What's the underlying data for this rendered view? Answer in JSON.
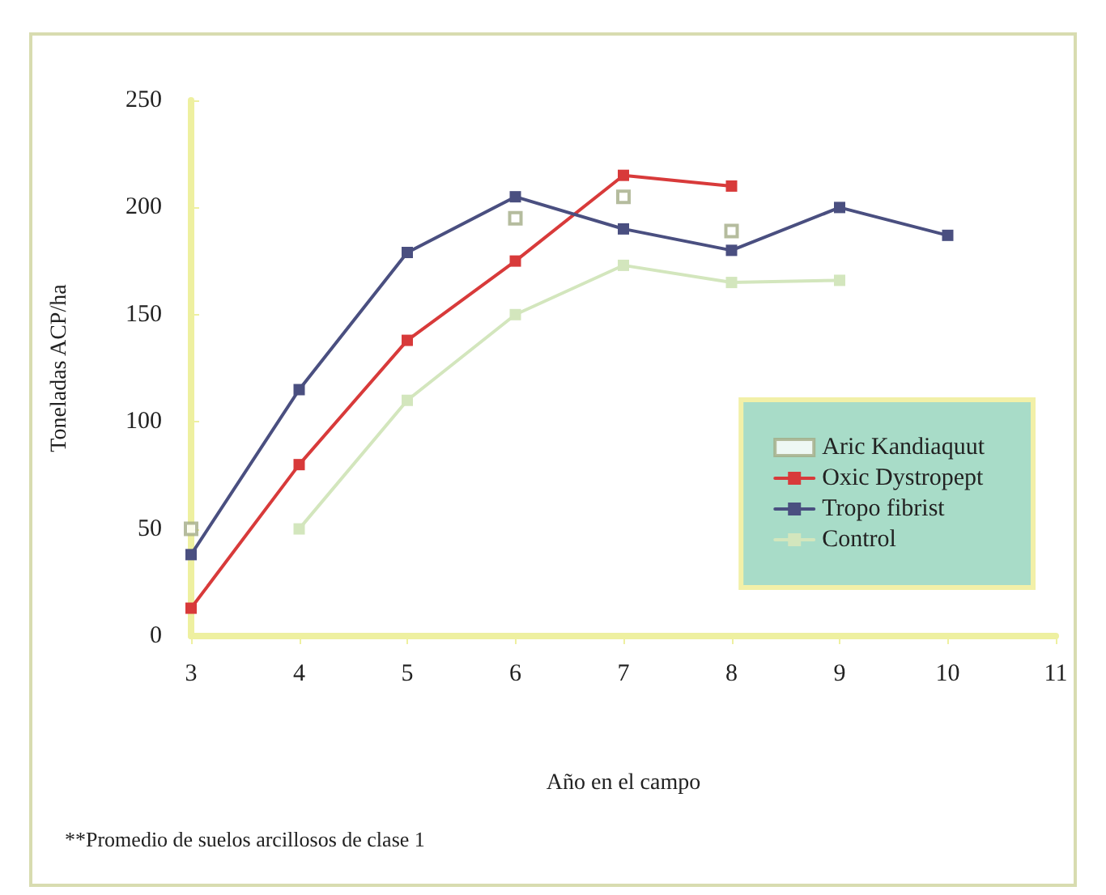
{
  "chart_data": {
    "type": "line",
    "xlabel": "Año en el campo",
    "ylabel": "Toneladas ACP/ha",
    "annotations": [
      "**Promedio de suelos arcillosos de clase 1"
    ],
    "x": [
      3,
      4,
      5,
      6,
      7,
      8,
      9,
      10
    ],
    "series": [
      {
        "name": "Aric Kandiaquut",
        "type": "scatter",
        "color": "#a3ab86",
        "values": [
          50,
          null,
          null,
          195,
          205,
          189,
          null,
          null
        ]
      },
      {
        "name": "Oxic Dystropept",
        "color": "#d83a3a",
        "values": [
          13,
          80,
          138,
          175,
          215,
          210,
          null,
          null
        ]
      },
      {
        "name": "Tropo fibrist",
        "color": "#4a4f80",
        "values": [
          38,
          115,
          179,
          205,
          190,
          180,
          200,
          187
        ]
      },
      {
        "name": "Control",
        "color": "#d3e6bd",
        "values": [
          null,
          50,
          110,
          150,
          173,
          165,
          166,
          null
        ]
      }
    ],
    "xlim": [
      3,
      11
    ],
    "xticks": [
      3,
      4,
      5,
      6,
      7,
      8,
      9,
      10,
      11
    ],
    "ylim": [
      0,
      250
    ],
    "yticks": [
      0,
      50,
      100,
      150,
      200,
      250
    ],
    "grid": false,
    "legend": "bottom right",
    "marker": "square",
    "line_style": "solid"
  }
}
